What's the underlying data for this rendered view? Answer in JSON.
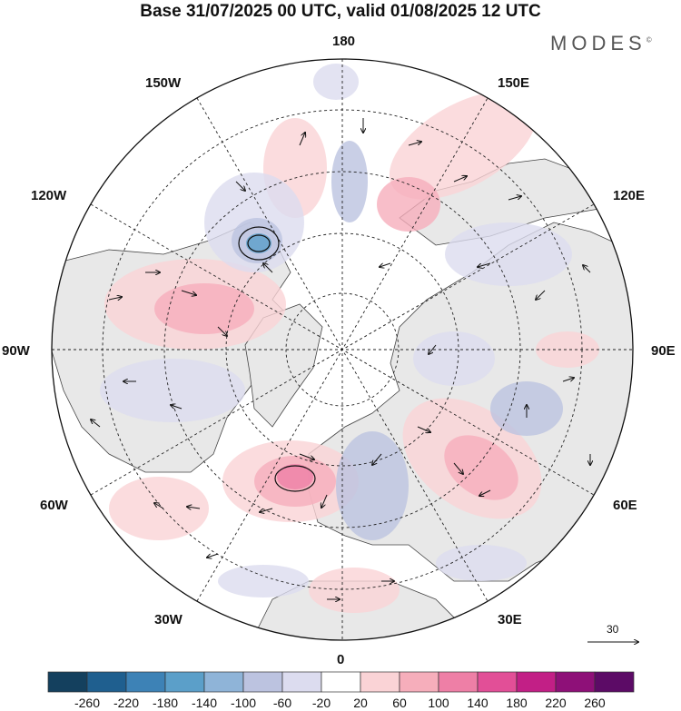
{
  "title": "Base 31/07/2025 00 UTC, valid 01/08/2025 12 UTC",
  "brand": "MODES",
  "brand_mark": "©",
  "meridian_labels": {
    "m180": "180",
    "m150e": "150E",
    "m120e": "120E",
    "m90e": "90E",
    "m60e": "60E",
    "m30e": "30E",
    "m0": "0",
    "m30w": "30W",
    "m60w": "60W",
    "m90w": "90W",
    "m120w": "120W",
    "m150w": "150W"
  },
  "reference_vector_label": "30",
  "colorbar": {
    "labels": [
      "-260",
      "-220",
      "-180",
      "-140",
      "-100",
      "-60",
      "-20",
      "20",
      "60",
      "100",
      "140",
      "180",
      "220",
      "260"
    ],
    "colors": [
      "#14405e",
      "#1f5f8f",
      "#3d82b6",
      "#5b9fc9",
      "#8fb4d8",
      "#bcc3e0",
      "#dcdcef",
      "#ffffff",
      "#fad3d6",
      "#f6aebb",
      "#ee7fa6",
      "#e24f97",
      "#c21f86",
      "#8e1078",
      "#5c0b66"
    ]
  },
  "map_colors": {
    "land": "#e8e8e8",
    "anomaly_pos_weak": "#fad3d6",
    "anomaly_pos_mid": "#f6aebb",
    "anomaly_pos_strong": "#ee7fa6",
    "anomaly_neg_weak": "#dcdcef",
    "anomaly_neg_mid": "#bcc3e0",
    "anomaly_neg_strong": "#5b9fc9"
  }
}
